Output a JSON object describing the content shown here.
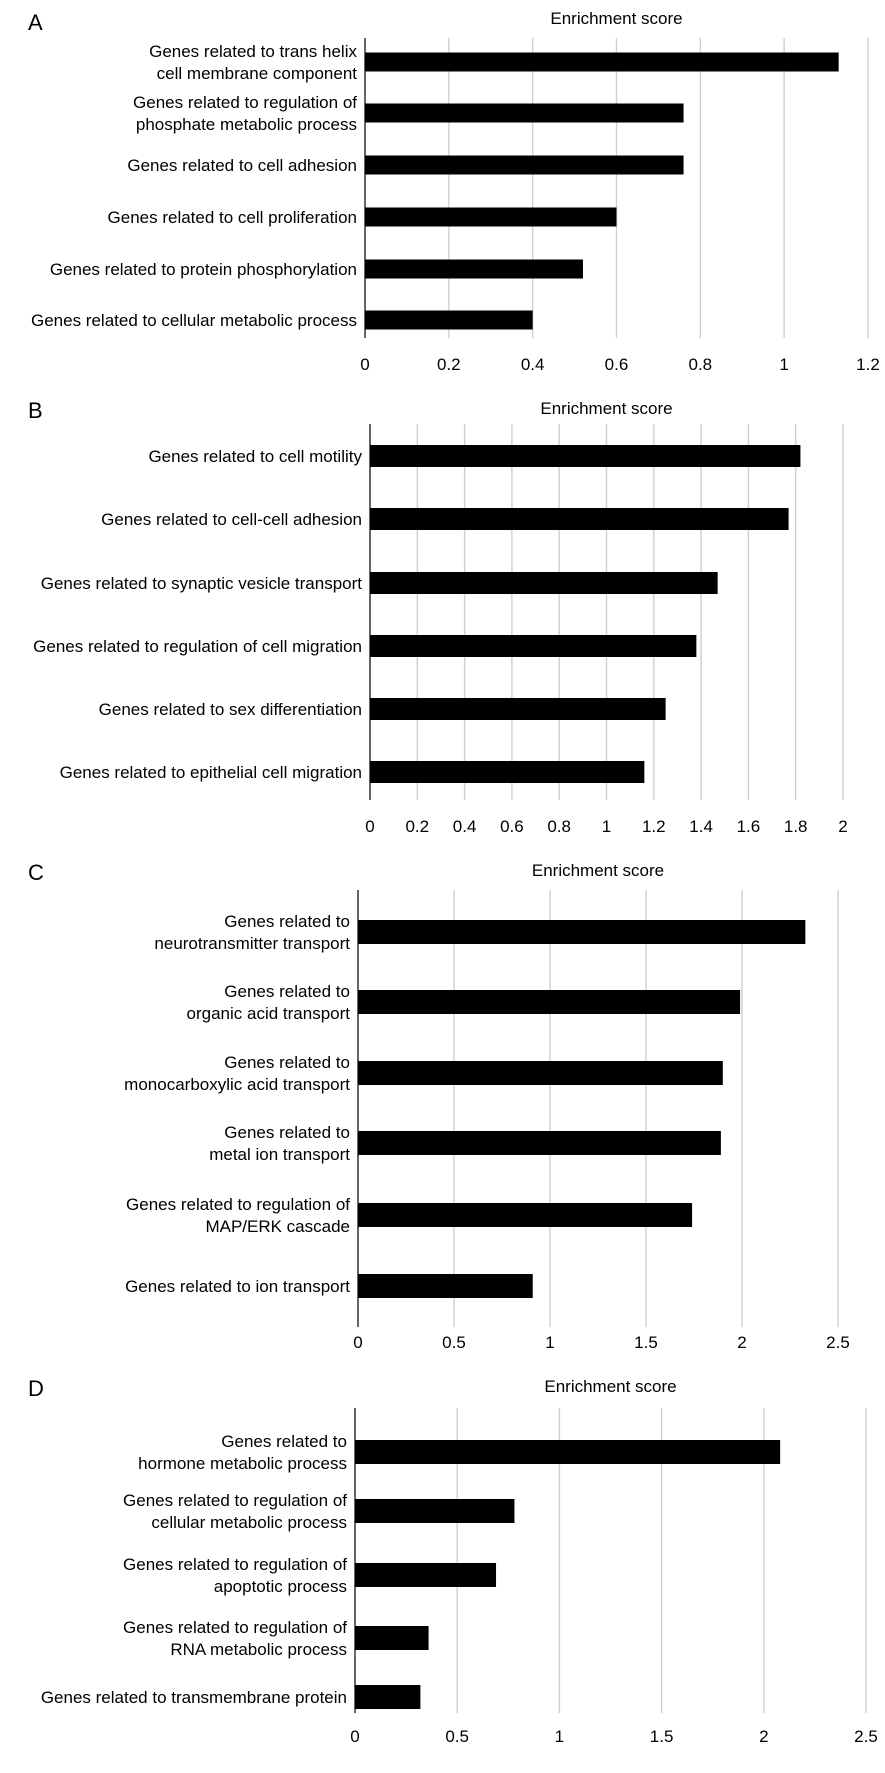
{
  "chart_data": [
    {
      "type": "bar",
      "orientation": "horizontal",
      "panel": "A",
      "title": "Enrichment score",
      "categories": [
        [
          "Genes related to trans helix",
          "cell membrane component"
        ],
        [
          "Genes related to regulation of",
          "phosphate metabolic process"
        ],
        [
          "Genes related to cell adhesion"
        ],
        [
          "Genes related to cell proliferation"
        ],
        [
          "Genes related to protein phosphorylation"
        ],
        [
          "Genes related to cellular metabolic process"
        ]
      ],
      "values": [
        1.13,
        0.76,
        0.76,
        0.6,
        0.52,
        0.4
      ],
      "xlim": [
        0,
        1.2
      ],
      "ticks": [
        "0",
        "0.2",
        "0.4",
        "0.6",
        "0.8",
        "1",
        "1.2"
      ],
      "grid": true
    },
    {
      "type": "bar",
      "orientation": "horizontal",
      "panel": "B",
      "title": "Enrichment score",
      "categories": [
        [
          "Genes related to cell motility"
        ],
        [
          "Genes related to cell-cell adhesion"
        ],
        [
          "Genes related to synaptic vesicle transport"
        ],
        [
          "Genes related to regulation of cell migration"
        ],
        [
          "Genes related to sex differentiation"
        ],
        [
          "Genes related to epithelial cell migration"
        ]
      ],
      "values": [
        1.82,
        1.77,
        1.47,
        1.38,
        1.25,
        1.16
      ],
      "xlim": [
        0,
        2
      ],
      "ticks": [
        "0",
        "0.2",
        "0.4",
        "0.6",
        "0.8",
        "1",
        "1.2",
        "1.4",
        "1.6",
        "1.8",
        "2"
      ],
      "grid": true
    },
    {
      "type": "bar",
      "orientation": "horizontal",
      "panel": "C",
      "title": "Enrichment score",
      "categories": [
        [
          "Genes related to",
          "neurotransmitter transport"
        ],
        [
          "Genes related to",
          "organic acid transport"
        ],
        [
          "Genes related to",
          "monocarboxylic acid transport"
        ],
        [
          "Genes related to",
          "metal ion transport"
        ],
        [
          "Genes related to regulation of",
          "MAP/ERK cascade"
        ],
        [
          "Genes related to ion transport"
        ]
      ],
      "values": [
        2.33,
        1.99,
        1.9,
        1.89,
        1.74,
        0.91
      ],
      "xlim": [
        0,
        2.5
      ],
      "ticks": [
        "0",
        "0.5",
        "1",
        "1.5",
        "2",
        "2.5"
      ],
      "grid": true
    },
    {
      "type": "bar",
      "orientation": "horizontal",
      "panel": "D",
      "title": "Enrichment score",
      "categories": [
        [
          "Genes related to",
          "hormone metabolic process"
        ],
        [
          "Genes related to regulation of",
          "cellular metabolic process"
        ],
        [
          "Genes related to regulation of",
          "apoptotic process"
        ],
        [
          "Genes related to regulation of",
          "RNA metabolic process"
        ],
        [
          "Genes related to transmembrane protein"
        ]
      ],
      "values": [
        2.08,
        0.78,
        0.69,
        0.36,
        0.32
      ],
      "xlim": [
        0,
        2.5
      ],
      "ticks": [
        "0",
        "0.5",
        "1",
        "1.5",
        "2",
        "2.5"
      ],
      "grid": true
    }
  ]
}
